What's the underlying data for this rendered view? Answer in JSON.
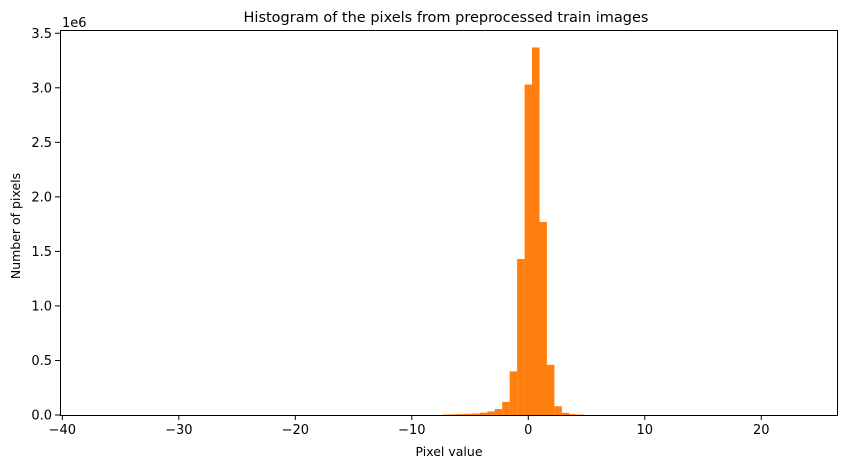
{
  "chart_data": {
    "type": "bar",
    "title": "Histogram of the pixels from preprocessed train images",
    "xlabel": "Pixel value",
    "ylabel": "Number of pixels",
    "y_offset_label": "1e6",
    "xlim": [
      -40.2,
      26.5
    ],
    "ylim": [
      0,
      3.53
    ],
    "y_multiplier": 1000000,
    "bin_width": 0.64,
    "bar_color": "#ff7f0e",
    "grid": false,
    "x_ticks": [
      {
        "value": -40,
        "label": "−40"
      },
      {
        "value": -30,
        "label": "−30"
      },
      {
        "value": -20,
        "label": "−20"
      },
      {
        "value": -10,
        "label": "−10"
      },
      {
        "value": 0,
        "label": "0"
      },
      {
        "value": 10,
        "label": "10"
      },
      {
        "value": 20,
        "label": "20"
      }
    ],
    "y_ticks": [
      {
        "value": 0.0,
        "label": "0.0"
      },
      {
        "value": 0.5,
        "label": "0.5"
      },
      {
        "value": 1.0,
        "label": "1.0"
      },
      {
        "value": 1.5,
        "label": "1.5"
      },
      {
        "value": 2.0,
        "label": "2.0"
      },
      {
        "value": 2.5,
        "label": "2.5"
      },
      {
        "value": 3.0,
        "label": "3.0"
      },
      {
        "value": 3.5,
        "label": "3.5"
      }
    ],
    "bins": [
      {
        "x": -7.36,
        "y": 0.004
      },
      {
        "x": -6.72,
        "y": 0.006
      },
      {
        "x": -6.08,
        "y": 0.008
      },
      {
        "x": -5.44,
        "y": 0.011
      },
      {
        "x": -4.8,
        "y": 0.014
      },
      {
        "x": -4.16,
        "y": 0.021
      },
      {
        "x": -3.52,
        "y": 0.032
      },
      {
        "x": -2.88,
        "y": 0.055
      },
      {
        "x": -2.24,
        "y": 0.12
      },
      {
        "x": -1.6,
        "y": 0.4
      },
      {
        "x": -0.96,
        "y": 1.43
      },
      {
        "x": -0.32,
        "y": 3.03
      },
      {
        "x": 0.32,
        "y": 3.37
      },
      {
        "x": 0.96,
        "y": 1.77
      },
      {
        "x": 1.6,
        "y": 0.46
      },
      {
        "x": 2.24,
        "y": 0.08
      },
      {
        "x": 2.88,
        "y": 0.02
      },
      {
        "x": 3.52,
        "y": 0.008
      },
      {
        "x": 4.16,
        "y": 0.004
      }
    ]
  }
}
